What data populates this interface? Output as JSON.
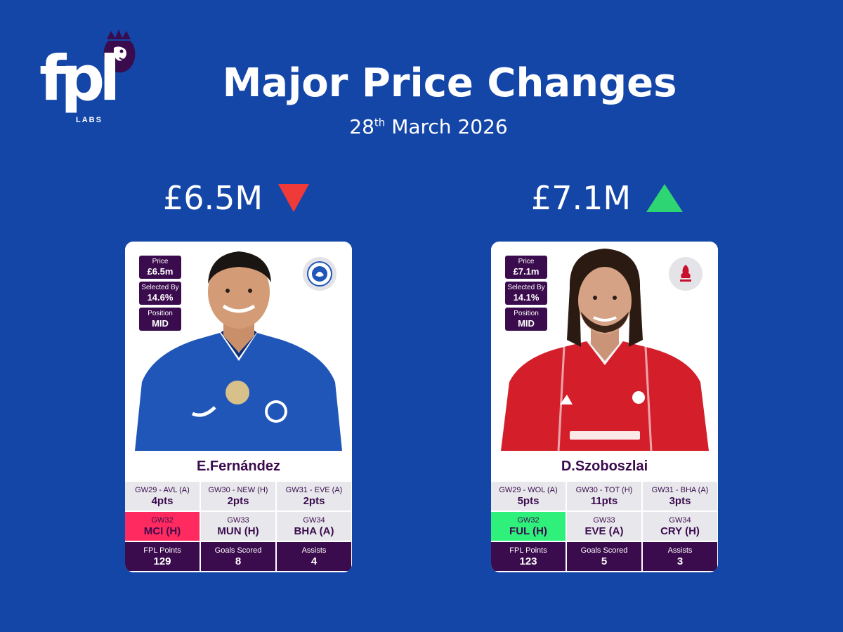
{
  "logo": {
    "text": "fpl",
    "sub": "LABS"
  },
  "header": {
    "title": "Major Price Changes",
    "date_day": "28",
    "date_suffix": "th",
    "date_rest": " March 2026"
  },
  "changes": [
    {
      "price_label": "£6.5M",
      "direction": "down",
      "direction_color": "#f03a3a",
      "player": {
        "name": "E.Fernández",
        "club_icon": "chelsea-crest-icon",
        "price_label": "Price",
        "price": "£6.5m",
        "selected_label": "Selected By",
        "selected": "14.6%",
        "position_label": "Position",
        "position": "MID",
        "past": [
          {
            "gw": "GW29 - AVL (A)",
            "pts": "4pts"
          },
          {
            "gw": "GW30 - NEW (H)",
            "pts": "2pts"
          },
          {
            "gw": "GW31 - EVE (A)",
            "pts": "2pts"
          }
        ],
        "fixtures": [
          {
            "gw": "GW32",
            "opp": "MCI (H)",
            "color": "#ff2a5f"
          },
          {
            "gw": "GW33",
            "opp": "MUN (H)"
          },
          {
            "gw": "GW34",
            "opp": "BHA (A)"
          }
        ],
        "totals": [
          {
            "label": "FPL Points",
            "value": "129"
          },
          {
            "label": "Goals Scored",
            "value": "8"
          },
          {
            "label": "Assists",
            "value": "4"
          }
        ]
      }
    },
    {
      "price_label": "£7.1M",
      "direction": "up",
      "direction_color": "#2ed573",
      "player": {
        "name": "D.Szoboszlai",
        "club_icon": "liverpool-crest-icon",
        "price_label": "Price",
        "price": "£7.1m",
        "selected_label": "Selected By",
        "selected": "14.1%",
        "position_label": "Position",
        "position": "MID",
        "past": [
          {
            "gw": "GW29 - WOL (A)",
            "pts": "5pts"
          },
          {
            "gw": "GW30 - TOT (H)",
            "pts": "11pts"
          },
          {
            "gw": "GW31 - BHA (A)",
            "pts": "3pts"
          }
        ],
        "fixtures": [
          {
            "gw": "GW32",
            "opp": "FUL (H)",
            "color": "#2ef07a"
          },
          {
            "gw": "GW33",
            "opp": "EVE (A)"
          },
          {
            "gw": "GW34",
            "opp": "CRY (H)"
          }
        ],
        "totals": [
          {
            "label": "FPL Points",
            "value": "123"
          },
          {
            "label": "Goals Scored",
            "value": "5"
          },
          {
            "label": "Assists",
            "value": "3"
          }
        ]
      }
    }
  ]
}
